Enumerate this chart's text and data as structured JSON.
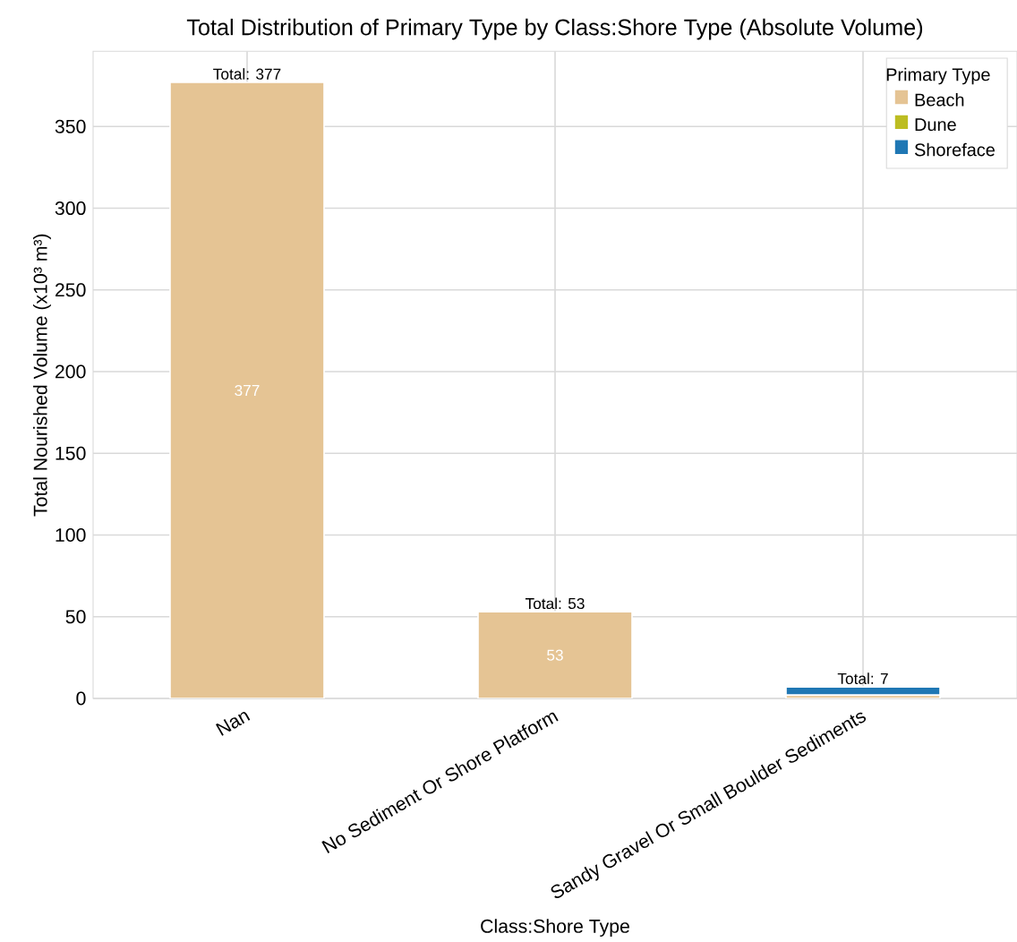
{
  "chart_data": {
    "type": "bar",
    "title": "Total Distribution of Primary Type by Class:Shore Type (Absolute Volume)",
    "xlabel": "Class:Shore Type",
    "ylabel": "Total Nourished Volume (x10³ m³)",
    "legend_title": "Primary Type",
    "categories": [
      "Nan",
      "No Sediment Or Shore Platform",
      "Sandy Gravel Or Small Boulder Sediments"
    ],
    "stacked": true,
    "series": [
      {
        "name": "Beach",
        "color": "#e5c494",
        "values": [
          377,
          53,
          2
        ],
        "value_labels": [
          "377",
          "53",
          null
        ]
      },
      {
        "name": "Dune",
        "color": "#bcbd22",
        "values": [
          0,
          0,
          0
        ]
      },
      {
        "name": "Shoreface",
        "color": "#1f77b4",
        "values": [
          0,
          0,
          5
        ]
      }
    ],
    "totals": [
      "Total: 377",
      "Total: 53",
      "Total: 7"
    ],
    "ylim": [
      0,
      396
    ],
    "yticks": [
      0,
      50,
      100,
      150,
      200,
      250,
      300,
      350
    ],
    "grid": true,
    "legend": "top right"
  }
}
